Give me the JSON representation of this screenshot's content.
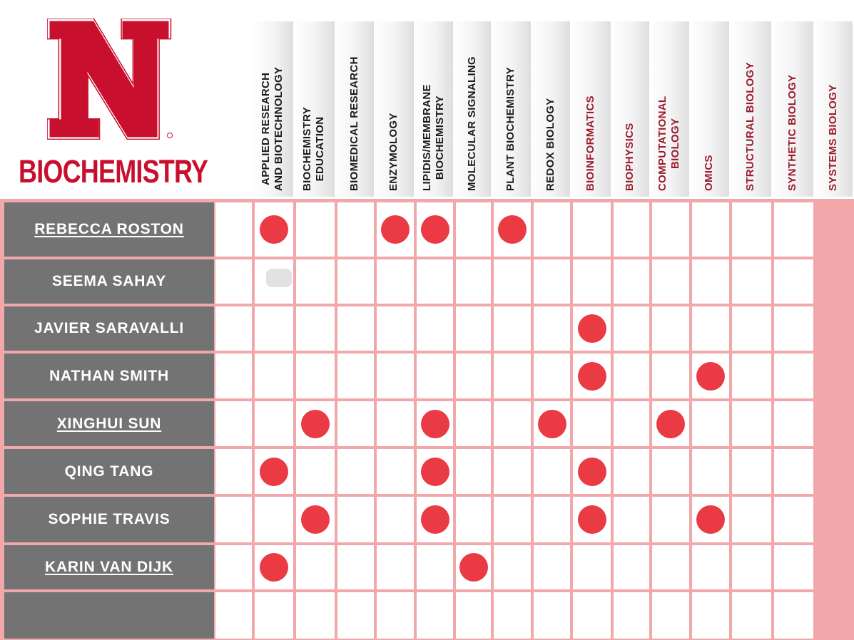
{
  "logo": {
    "text": "BIOCHEMISTRY"
  },
  "colors": {
    "brand_red": "#c8102e",
    "dot_red": "#ea3a43",
    "grid_line": "#f2a7ab",
    "name_bg": "#737373",
    "label_red": "#9b1b2b"
  },
  "columns": [
    {
      "label": "APPLIED RESEARCH\nAND BIOTECHNOLOGY",
      "style": "dark"
    },
    {
      "label": "BIOCHEMISTRY\nEDUCATION",
      "style": "dark"
    },
    {
      "label": "BIOMEDICAL RESEARCH",
      "style": "dark"
    },
    {
      "label": "ENZYMOLOGY",
      "style": "dark"
    },
    {
      "label": "LIPIDIS/MEMBRANE\nBIOCHEMISTRY",
      "style": "dark"
    },
    {
      "label": "MOLECULAR SIGNALING",
      "style": "dark"
    },
    {
      "label": "PLANT BIOCHEMISTRY",
      "style": "dark"
    },
    {
      "label": "REDOX BIOLOGY",
      "style": "dark"
    },
    {
      "label": "BIOINFORMATICS",
      "style": "red"
    },
    {
      "label": "BIOPHYSICS",
      "style": "red"
    },
    {
      "label": "COMPUTATIONAL\nBIOLOGY",
      "style": "red"
    },
    {
      "label": "OMICS",
      "style": "red"
    },
    {
      "label": "STRUCTURAL BIOLOGY",
      "style": "red"
    },
    {
      "label": "SYNTHETIC BIOLOGY",
      "style": "red"
    },
    {
      "label": "SYSTEMS BIOLOGY",
      "style": "red"
    }
  ],
  "rows": [
    {
      "name": "REBECCA ROSTON",
      "linked": true,
      "marks": [
        1,
        4,
        5,
        7
      ]
    },
    {
      "name": "SEEMA SAHAY",
      "linked": false,
      "marks": []
    },
    {
      "name": "JAVIER SARAVALLI",
      "linked": false,
      "marks": [
        9
      ]
    },
    {
      "name": "NATHAN SMITH",
      "linked": false,
      "marks": [
        9,
        12
      ]
    },
    {
      "name": "XINGHUI SUN",
      "linked": true,
      "marks": [
        2,
        5,
        8,
        11
      ]
    },
    {
      "name": "QING TANG",
      "linked": false,
      "marks": [
        1,
        5,
        9
      ]
    },
    {
      "name": "SOPHIE TRAVIS",
      "linked": false,
      "marks": [
        2,
        5,
        9,
        12
      ]
    },
    {
      "name": "KARIN VAN DIJK",
      "linked": true,
      "marks": [
        1,
        6
      ]
    },
    {
      "name": "",
      "linked": false,
      "marks": []
    }
  ]
}
